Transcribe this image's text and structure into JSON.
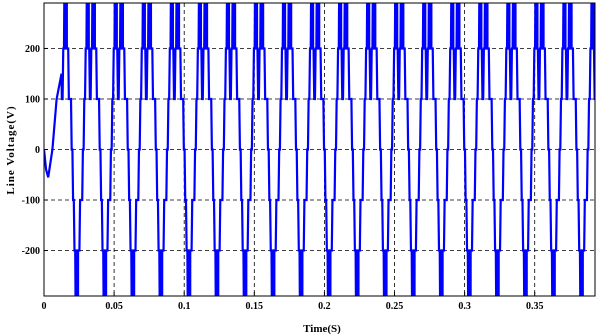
{
  "chart_data": {
    "type": "line",
    "title": "",
    "xlabel": "Time(S)",
    "ylabel": "Line Voltage(V)",
    "xlim": [
      0,
      0.393
    ],
    "ylim": [
      -290,
      290
    ],
    "xticks": [
      0,
      0.05,
      0.1,
      0.15,
      0.2,
      0.25,
      0.3,
      0.35
    ],
    "xtick_labels": [
      "0",
      "0.05",
      "0.1",
      "0.15",
      "0.2",
      "0.25",
      "0.3",
      "0.35"
    ],
    "yticks": [
      -200,
      -100,
      0,
      100,
      200
    ],
    "ytick_labels": [
      "-200",
      "-100",
      "0",
      "100",
      "200"
    ],
    "grid": true,
    "grid_style": "dashed",
    "line_color": "#0000ff",
    "series": [
      {
        "waveform": "multilevel stepped line voltage",
        "levels": [
          -300,
          -200,
          -100,
          0,
          100,
          200,
          300
        ],
        "period": 0.02,
        "period_count": 20
      }
    ]
  }
}
